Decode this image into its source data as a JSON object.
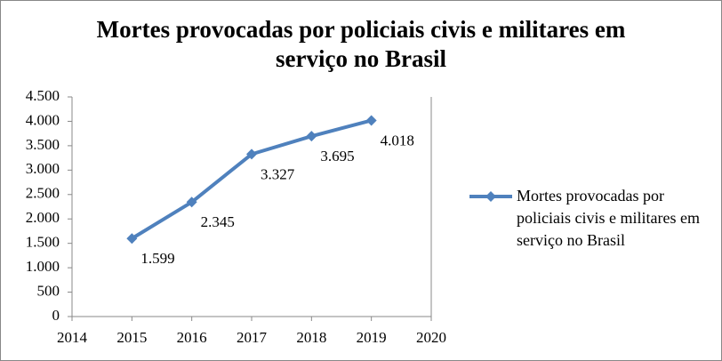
{
  "chart_data": {
    "type": "line",
    "title": "Mortes provocadas por policiais civis e militares em serviço no Brasil",
    "x": [
      2015,
      2016,
      2017,
      2018,
      2019
    ],
    "series": [
      {
        "name": "Mortes provocadas por policiais civis e militares em serviço no Brasil",
        "color": "#4f81bd",
        "values": [
          1599,
          2345,
          3327,
          3695,
          4018
        ],
        "value_labels": [
          "1.599",
          "2.345",
          "3.327",
          "3.695",
          "4.018"
        ]
      }
    ],
    "xlim": [
      2014,
      2020
    ],
    "xticks": [
      2014,
      2015,
      2016,
      2017,
      2018,
      2019,
      2020
    ],
    "ylim": [
      0,
      4500
    ],
    "yticks": [
      0,
      500,
      {
        "value": 1000,
        "label": "1.000"
      },
      {
        "value": 1500,
        "label": "1.500"
      },
      {
        "value": 2000,
        "label": "2.000"
      },
      {
        "value": 2500,
        "label": "2.500"
      },
      {
        "value": 3000,
        "label": "3.000"
      },
      {
        "value": 3500,
        "label": "3.500"
      },
      {
        "value": 4000,
        "label": "4.000"
      },
      {
        "value": 4500,
        "label": "4.500"
      }
    ],
    "grid": false,
    "legend": "right"
  }
}
